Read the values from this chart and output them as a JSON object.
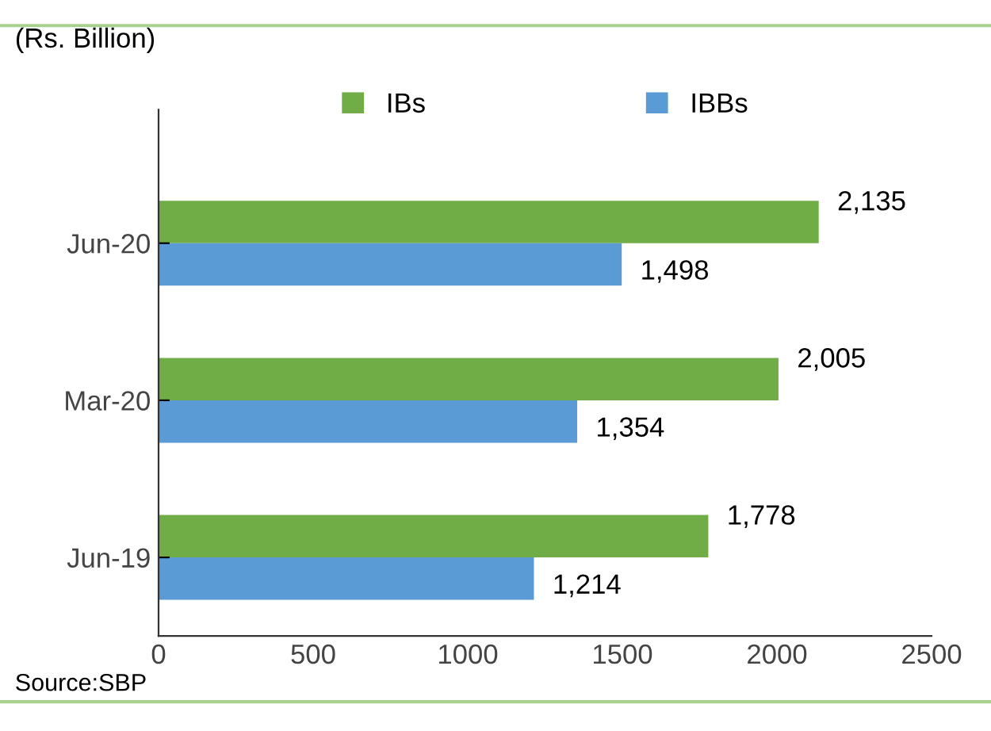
{
  "chart_data": {
    "type": "bar",
    "orientation": "horizontal",
    "subtitle": "(Rs. Billion)",
    "categories": [
      "Jun-20",
      "Mar-20",
      "Jun-19"
    ],
    "series": [
      {
        "name": "IBs",
        "color": "#70ad47",
        "values": [
          2135,
          2005,
          1778
        ],
        "value_labels": [
          "2,135",
          "2,005",
          "1,778"
        ]
      },
      {
        "name": "IBBs",
        "color": "#5b9bd5",
        "values": [
          1498,
          1354,
          1214
        ],
        "value_labels": [
          "1,498",
          "1,354",
          "1,214"
        ]
      }
    ],
    "xlim": [
      0,
      2500
    ],
    "xticks": [
      0,
      500,
      1000,
      1500,
      2000,
      2500
    ],
    "grid": false,
    "legend": "top",
    "annotations": [
      "Source:SBP"
    ]
  }
}
